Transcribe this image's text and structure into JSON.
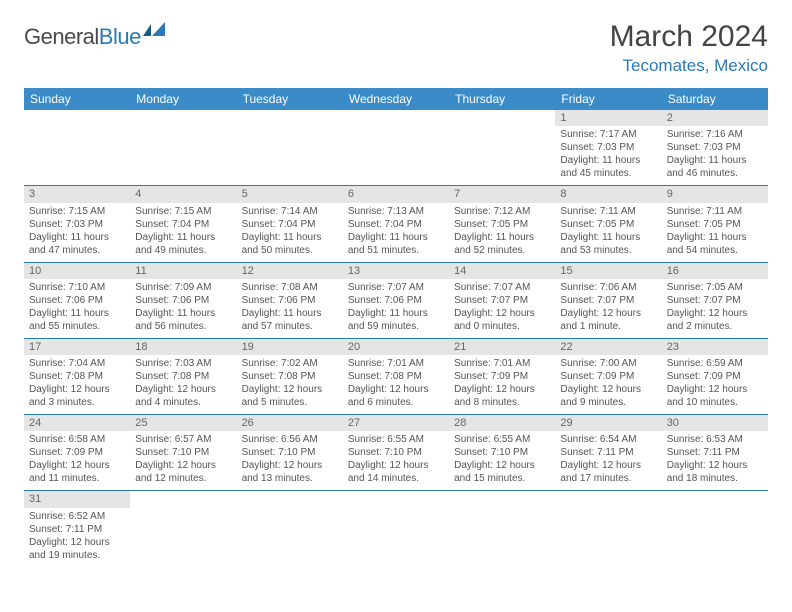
{
  "logo": {
    "text1": "General",
    "text2": "Blue"
  },
  "title": "March 2024",
  "location": "Tecomates, Mexico",
  "colors": {
    "header_bg": "#3b8bc9",
    "header_text": "#ffffff",
    "accent": "#2a7ab8",
    "daynum_bg": "#e5e5e5",
    "text": "#555555"
  },
  "weekdays": [
    "Sunday",
    "Monday",
    "Tuesday",
    "Wednesday",
    "Thursday",
    "Friday",
    "Saturday"
  ],
  "weeks": [
    [
      {
        "n": "",
        "sr": "",
        "ss": "",
        "dl": ""
      },
      {
        "n": "",
        "sr": "",
        "ss": "",
        "dl": ""
      },
      {
        "n": "",
        "sr": "",
        "ss": "",
        "dl": ""
      },
      {
        "n": "",
        "sr": "",
        "ss": "",
        "dl": ""
      },
      {
        "n": "",
        "sr": "",
        "ss": "",
        "dl": ""
      },
      {
        "n": "1",
        "sr": "Sunrise: 7:17 AM",
        "ss": "Sunset: 7:03 PM",
        "dl": "Daylight: 11 hours and 45 minutes."
      },
      {
        "n": "2",
        "sr": "Sunrise: 7:16 AM",
        "ss": "Sunset: 7:03 PM",
        "dl": "Daylight: 11 hours and 46 minutes."
      }
    ],
    [
      {
        "n": "3",
        "sr": "Sunrise: 7:15 AM",
        "ss": "Sunset: 7:03 PM",
        "dl": "Daylight: 11 hours and 47 minutes."
      },
      {
        "n": "4",
        "sr": "Sunrise: 7:15 AM",
        "ss": "Sunset: 7:04 PM",
        "dl": "Daylight: 11 hours and 49 minutes."
      },
      {
        "n": "5",
        "sr": "Sunrise: 7:14 AM",
        "ss": "Sunset: 7:04 PM",
        "dl": "Daylight: 11 hours and 50 minutes."
      },
      {
        "n": "6",
        "sr": "Sunrise: 7:13 AM",
        "ss": "Sunset: 7:04 PM",
        "dl": "Daylight: 11 hours and 51 minutes."
      },
      {
        "n": "7",
        "sr": "Sunrise: 7:12 AM",
        "ss": "Sunset: 7:05 PM",
        "dl": "Daylight: 11 hours and 52 minutes."
      },
      {
        "n": "8",
        "sr": "Sunrise: 7:11 AM",
        "ss": "Sunset: 7:05 PM",
        "dl": "Daylight: 11 hours and 53 minutes."
      },
      {
        "n": "9",
        "sr": "Sunrise: 7:11 AM",
        "ss": "Sunset: 7:05 PM",
        "dl": "Daylight: 11 hours and 54 minutes."
      }
    ],
    [
      {
        "n": "10",
        "sr": "Sunrise: 7:10 AM",
        "ss": "Sunset: 7:06 PM",
        "dl": "Daylight: 11 hours and 55 minutes."
      },
      {
        "n": "11",
        "sr": "Sunrise: 7:09 AM",
        "ss": "Sunset: 7:06 PM",
        "dl": "Daylight: 11 hours and 56 minutes."
      },
      {
        "n": "12",
        "sr": "Sunrise: 7:08 AM",
        "ss": "Sunset: 7:06 PM",
        "dl": "Daylight: 11 hours and 57 minutes."
      },
      {
        "n": "13",
        "sr": "Sunrise: 7:07 AM",
        "ss": "Sunset: 7:06 PM",
        "dl": "Daylight: 11 hours and 59 minutes."
      },
      {
        "n": "14",
        "sr": "Sunrise: 7:07 AM",
        "ss": "Sunset: 7:07 PM",
        "dl": "Daylight: 12 hours and 0 minutes."
      },
      {
        "n": "15",
        "sr": "Sunrise: 7:06 AM",
        "ss": "Sunset: 7:07 PM",
        "dl": "Daylight: 12 hours and 1 minute."
      },
      {
        "n": "16",
        "sr": "Sunrise: 7:05 AM",
        "ss": "Sunset: 7:07 PM",
        "dl": "Daylight: 12 hours and 2 minutes."
      }
    ],
    [
      {
        "n": "17",
        "sr": "Sunrise: 7:04 AM",
        "ss": "Sunset: 7:08 PM",
        "dl": "Daylight: 12 hours and 3 minutes."
      },
      {
        "n": "18",
        "sr": "Sunrise: 7:03 AM",
        "ss": "Sunset: 7:08 PM",
        "dl": "Daylight: 12 hours and 4 minutes."
      },
      {
        "n": "19",
        "sr": "Sunrise: 7:02 AM",
        "ss": "Sunset: 7:08 PM",
        "dl": "Daylight: 12 hours and 5 minutes."
      },
      {
        "n": "20",
        "sr": "Sunrise: 7:01 AM",
        "ss": "Sunset: 7:08 PM",
        "dl": "Daylight: 12 hours and 6 minutes."
      },
      {
        "n": "21",
        "sr": "Sunrise: 7:01 AM",
        "ss": "Sunset: 7:09 PM",
        "dl": "Daylight: 12 hours and 8 minutes."
      },
      {
        "n": "22",
        "sr": "Sunrise: 7:00 AM",
        "ss": "Sunset: 7:09 PM",
        "dl": "Daylight: 12 hours and 9 minutes."
      },
      {
        "n": "23",
        "sr": "Sunrise: 6:59 AM",
        "ss": "Sunset: 7:09 PM",
        "dl": "Daylight: 12 hours and 10 minutes."
      }
    ],
    [
      {
        "n": "24",
        "sr": "Sunrise: 6:58 AM",
        "ss": "Sunset: 7:09 PM",
        "dl": "Daylight: 12 hours and 11 minutes."
      },
      {
        "n": "25",
        "sr": "Sunrise: 6:57 AM",
        "ss": "Sunset: 7:10 PM",
        "dl": "Daylight: 12 hours and 12 minutes."
      },
      {
        "n": "26",
        "sr": "Sunrise: 6:56 AM",
        "ss": "Sunset: 7:10 PM",
        "dl": "Daylight: 12 hours and 13 minutes."
      },
      {
        "n": "27",
        "sr": "Sunrise: 6:55 AM",
        "ss": "Sunset: 7:10 PM",
        "dl": "Daylight: 12 hours and 14 minutes."
      },
      {
        "n": "28",
        "sr": "Sunrise: 6:55 AM",
        "ss": "Sunset: 7:10 PM",
        "dl": "Daylight: 12 hours and 15 minutes."
      },
      {
        "n": "29",
        "sr": "Sunrise: 6:54 AM",
        "ss": "Sunset: 7:11 PM",
        "dl": "Daylight: 12 hours and 17 minutes."
      },
      {
        "n": "30",
        "sr": "Sunrise: 6:53 AM",
        "ss": "Sunset: 7:11 PM",
        "dl": "Daylight: 12 hours and 18 minutes."
      }
    ],
    [
      {
        "n": "31",
        "sr": "Sunrise: 6:52 AM",
        "ss": "Sunset: 7:11 PM",
        "dl": "Daylight: 12 hours and 19 minutes."
      },
      {
        "n": "",
        "sr": "",
        "ss": "",
        "dl": ""
      },
      {
        "n": "",
        "sr": "",
        "ss": "",
        "dl": ""
      },
      {
        "n": "",
        "sr": "",
        "ss": "",
        "dl": ""
      },
      {
        "n": "",
        "sr": "",
        "ss": "",
        "dl": ""
      },
      {
        "n": "",
        "sr": "",
        "ss": "",
        "dl": ""
      },
      {
        "n": "",
        "sr": "",
        "ss": "",
        "dl": ""
      }
    ]
  ]
}
